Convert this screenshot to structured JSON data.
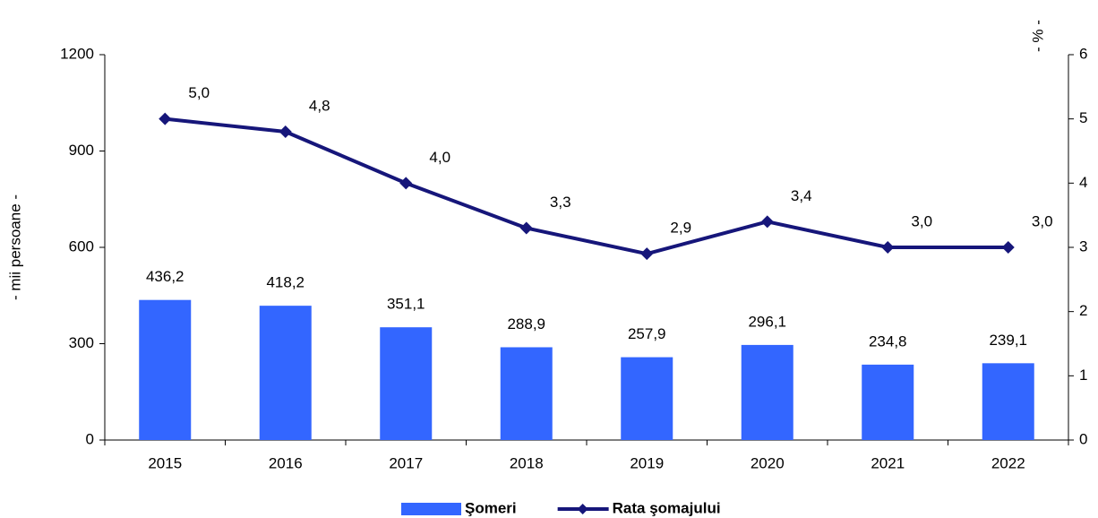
{
  "chart_data": {
    "type": "bar",
    "categories": [
      "2015",
      "2016",
      "2017",
      "2018",
      "2019",
      "2020",
      "2021",
      "2022"
    ],
    "series": [
      {
        "name": "Şomeri",
        "color": "#3366ff",
        "values": [
          436.2,
          418.2,
          351.1,
          288.9,
          257.9,
          296.1,
          234.8,
          239.1
        ],
        "value_labels": [
          "436,2",
          "418,2",
          "351,1",
          "288,9",
          "257,9",
          "296,1",
          "234,8",
          "239,1"
        ]
      },
      {
        "name": "Rata şomajului",
        "type": "line",
        "axis": "y2",
        "color": "#16167a",
        "values": [
          5.0,
          4.8,
          4.0,
          3.3,
          2.9,
          3.4,
          3.0,
          3.0
        ],
        "value_labels": [
          "5,0",
          "4,8",
          "4,0",
          "3,3",
          "2,9",
          "3,4",
          "3,0",
          "3,0"
        ]
      }
    ],
    "y_label": "- mii persoane -",
    "y2_label": "- % -",
    "ylim": [
      0,
      1200
    ],
    "yticks": [
      0,
      300,
      600,
      900,
      1200
    ],
    "y2lim": [
      0,
      6
    ],
    "y2ticks": [
      0,
      1,
      2,
      3,
      4,
      5,
      6
    ],
    "grid": false,
    "legend": "bottom"
  }
}
